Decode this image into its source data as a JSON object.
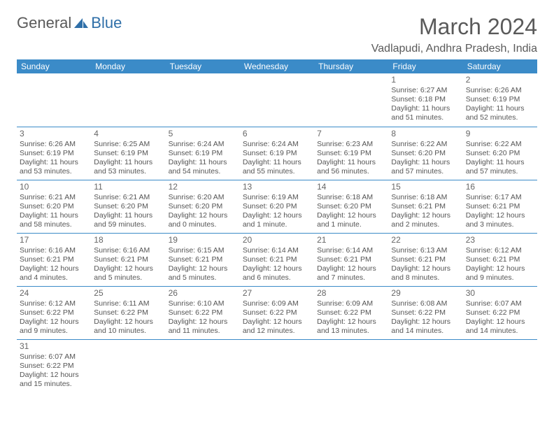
{
  "logo": {
    "text1": "General",
    "text2": "Blue"
  },
  "title": "March 2024",
  "location": "Vadlapudi, Andhra Pradesh, India",
  "header_bg": "#3b8bc8",
  "header_fg": "#ffffff",
  "rule_color": "#3b8bc8",
  "weekdays": [
    "Sunday",
    "Monday",
    "Tuesday",
    "Wednesday",
    "Thursday",
    "Friday",
    "Saturday"
  ],
  "weeks": [
    [
      null,
      null,
      null,
      null,
      null,
      {
        "n": "1",
        "sr": "Sunrise: 6:27 AM",
        "ss": "Sunset: 6:18 PM",
        "d1": "Daylight: 11 hours",
        "d2": "and 51 minutes."
      },
      {
        "n": "2",
        "sr": "Sunrise: 6:26 AM",
        "ss": "Sunset: 6:19 PM",
        "d1": "Daylight: 11 hours",
        "d2": "and 52 minutes."
      }
    ],
    [
      {
        "n": "3",
        "sr": "Sunrise: 6:26 AM",
        "ss": "Sunset: 6:19 PM",
        "d1": "Daylight: 11 hours",
        "d2": "and 53 minutes."
      },
      {
        "n": "4",
        "sr": "Sunrise: 6:25 AM",
        "ss": "Sunset: 6:19 PM",
        "d1": "Daylight: 11 hours",
        "d2": "and 53 minutes."
      },
      {
        "n": "5",
        "sr": "Sunrise: 6:24 AM",
        "ss": "Sunset: 6:19 PM",
        "d1": "Daylight: 11 hours",
        "d2": "and 54 minutes."
      },
      {
        "n": "6",
        "sr": "Sunrise: 6:24 AM",
        "ss": "Sunset: 6:19 PM",
        "d1": "Daylight: 11 hours",
        "d2": "and 55 minutes."
      },
      {
        "n": "7",
        "sr": "Sunrise: 6:23 AM",
        "ss": "Sunset: 6:19 PM",
        "d1": "Daylight: 11 hours",
        "d2": "and 56 minutes."
      },
      {
        "n": "8",
        "sr": "Sunrise: 6:22 AM",
        "ss": "Sunset: 6:20 PM",
        "d1": "Daylight: 11 hours",
        "d2": "and 57 minutes."
      },
      {
        "n": "9",
        "sr": "Sunrise: 6:22 AM",
        "ss": "Sunset: 6:20 PM",
        "d1": "Daylight: 11 hours",
        "d2": "and 57 minutes."
      }
    ],
    [
      {
        "n": "10",
        "sr": "Sunrise: 6:21 AM",
        "ss": "Sunset: 6:20 PM",
        "d1": "Daylight: 11 hours",
        "d2": "and 58 minutes."
      },
      {
        "n": "11",
        "sr": "Sunrise: 6:21 AM",
        "ss": "Sunset: 6:20 PM",
        "d1": "Daylight: 11 hours",
        "d2": "and 59 minutes."
      },
      {
        "n": "12",
        "sr": "Sunrise: 6:20 AM",
        "ss": "Sunset: 6:20 PM",
        "d1": "Daylight: 12 hours",
        "d2": "and 0 minutes."
      },
      {
        "n": "13",
        "sr": "Sunrise: 6:19 AM",
        "ss": "Sunset: 6:20 PM",
        "d1": "Daylight: 12 hours",
        "d2": "and 1 minute."
      },
      {
        "n": "14",
        "sr": "Sunrise: 6:18 AM",
        "ss": "Sunset: 6:20 PM",
        "d1": "Daylight: 12 hours",
        "d2": "and 1 minute."
      },
      {
        "n": "15",
        "sr": "Sunrise: 6:18 AM",
        "ss": "Sunset: 6:21 PM",
        "d1": "Daylight: 12 hours",
        "d2": "and 2 minutes."
      },
      {
        "n": "16",
        "sr": "Sunrise: 6:17 AM",
        "ss": "Sunset: 6:21 PM",
        "d1": "Daylight: 12 hours",
        "d2": "and 3 minutes."
      }
    ],
    [
      {
        "n": "17",
        "sr": "Sunrise: 6:16 AM",
        "ss": "Sunset: 6:21 PM",
        "d1": "Daylight: 12 hours",
        "d2": "and 4 minutes."
      },
      {
        "n": "18",
        "sr": "Sunrise: 6:16 AM",
        "ss": "Sunset: 6:21 PM",
        "d1": "Daylight: 12 hours",
        "d2": "and 5 minutes."
      },
      {
        "n": "19",
        "sr": "Sunrise: 6:15 AM",
        "ss": "Sunset: 6:21 PM",
        "d1": "Daylight: 12 hours",
        "d2": "and 5 minutes."
      },
      {
        "n": "20",
        "sr": "Sunrise: 6:14 AM",
        "ss": "Sunset: 6:21 PM",
        "d1": "Daylight: 12 hours",
        "d2": "and 6 minutes."
      },
      {
        "n": "21",
        "sr": "Sunrise: 6:14 AM",
        "ss": "Sunset: 6:21 PM",
        "d1": "Daylight: 12 hours",
        "d2": "and 7 minutes."
      },
      {
        "n": "22",
        "sr": "Sunrise: 6:13 AM",
        "ss": "Sunset: 6:21 PM",
        "d1": "Daylight: 12 hours",
        "d2": "and 8 minutes."
      },
      {
        "n": "23",
        "sr": "Sunrise: 6:12 AM",
        "ss": "Sunset: 6:21 PM",
        "d1": "Daylight: 12 hours",
        "d2": "and 9 minutes."
      }
    ],
    [
      {
        "n": "24",
        "sr": "Sunrise: 6:12 AM",
        "ss": "Sunset: 6:22 PM",
        "d1": "Daylight: 12 hours",
        "d2": "and 9 minutes."
      },
      {
        "n": "25",
        "sr": "Sunrise: 6:11 AM",
        "ss": "Sunset: 6:22 PM",
        "d1": "Daylight: 12 hours",
        "d2": "and 10 minutes."
      },
      {
        "n": "26",
        "sr": "Sunrise: 6:10 AM",
        "ss": "Sunset: 6:22 PM",
        "d1": "Daylight: 12 hours",
        "d2": "and 11 minutes."
      },
      {
        "n": "27",
        "sr": "Sunrise: 6:09 AM",
        "ss": "Sunset: 6:22 PM",
        "d1": "Daylight: 12 hours",
        "d2": "and 12 minutes."
      },
      {
        "n": "28",
        "sr": "Sunrise: 6:09 AM",
        "ss": "Sunset: 6:22 PM",
        "d1": "Daylight: 12 hours",
        "d2": "and 13 minutes."
      },
      {
        "n": "29",
        "sr": "Sunrise: 6:08 AM",
        "ss": "Sunset: 6:22 PM",
        "d1": "Daylight: 12 hours",
        "d2": "and 14 minutes."
      },
      {
        "n": "30",
        "sr": "Sunrise: 6:07 AM",
        "ss": "Sunset: 6:22 PM",
        "d1": "Daylight: 12 hours",
        "d2": "and 14 minutes."
      }
    ],
    [
      {
        "n": "31",
        "sr": "Sunrise: 6:07 AM",
        "ss": "Sunset: 6:22 PM",
        "d1": "Daylight: 12 hours",
        "d2": "and 15 minutes."
      },
      null,
      null,
      null,
      null,
      null,
      null
    ]
  ]
}
